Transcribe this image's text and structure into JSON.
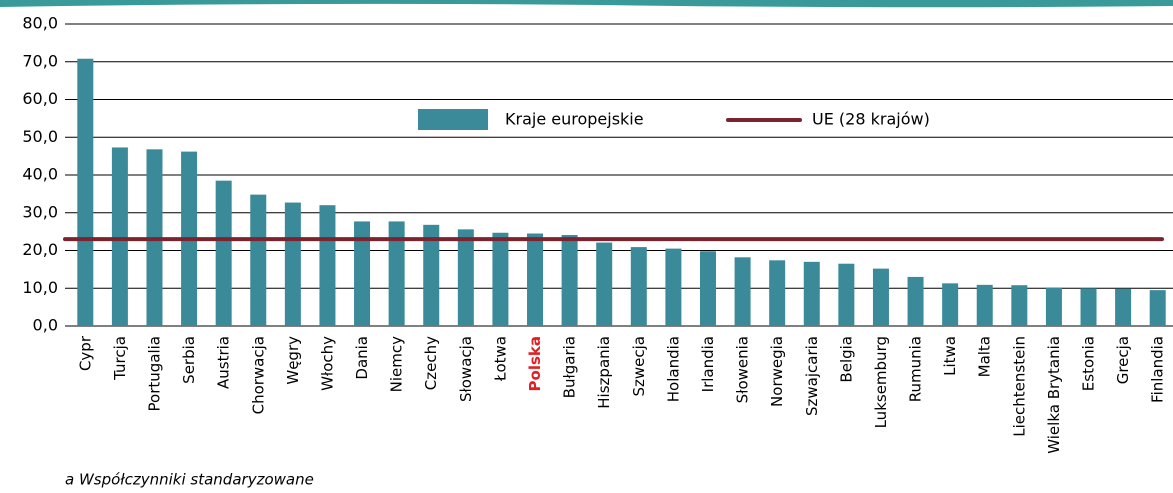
{
  "chart_data": {
    "type": "bar",
    "categories": [
      "Cypr",
      "Turcja",
      "Portugalia",
      "Serbia",
      "Austria",
      "Chorwacja",
      "Węgry",
      "Włochy",
      "Dania",
      "Niemcy",
      "Czechy",
      "Słowacja",
      "Łotwa",
      "Polska",
      "Bułgaria",
      "Hiszpania",
      "Szwecja",
      "Holandia",
      "Irlandia",
      "Słowenia",
      "Norwegia",
      "Szwajcaria",
      "Belgia",
      "Luksemburg",
      "Rumunia",
      "Litwa",
      "Malta",
      "Liechtenstein",
      "Wielka Brytania",
      "Estonia",
      "Grecja",
      "Finlandia"
    ],
    "series": [
      {
        "name": "Kraje europejskie",
        "color": "#3a8a9a",
        "values": [
          70.8,
          47.3,
          46.8,
          46.2,
          38.5,
          34.8,
          32.7,
          32.0,
          27.7,
          27.7,
          26.8,
          25.6,
          24.7,
          24.5,
          24.1,
          22.1,
          20.9,
          20.5,
          19.8,
          18.2,
          17.4,
          17.0,
          16.5,
          15.2,
          13.0,
          11.3,
          10.9,
          10.8,
          10.2,
          10.0,
          9.9,
          9.5
        ]
      }
    ],
    "reference_line": {
      "name": "UE (28 krajów)",
      "value": 23.0,
      "color": "#7b2430"
    },
    "highlight": "Polska",
    "highlight_color": "#e31e24",
    "ylim": [
      0,
      80
    ],
    "yticks": [
      {
        "value": 0,
        "label": "0,0"
      },
      {
        "value": 10,
        "label": "10,0"
      },
      {
        "value": 20,
        "label": "20,0"
      },
      {
        "value": 30,
        "label": "30,0"
      },
      {
        "value": 40,
        "label": "40,0"
      },
      {
        "value": 50,
        "label": "50,0"
      },
      {
        "value": 60,
        "label": "60,0"
      },
      {
        "value": 70,
        "label": "70,0"
      },
      {
        "value": 80,
        "label": "80,0"
      }
    ],
    "grid": true,
    "footnote": "a Współczynniki standaryzowane"
  }
}
